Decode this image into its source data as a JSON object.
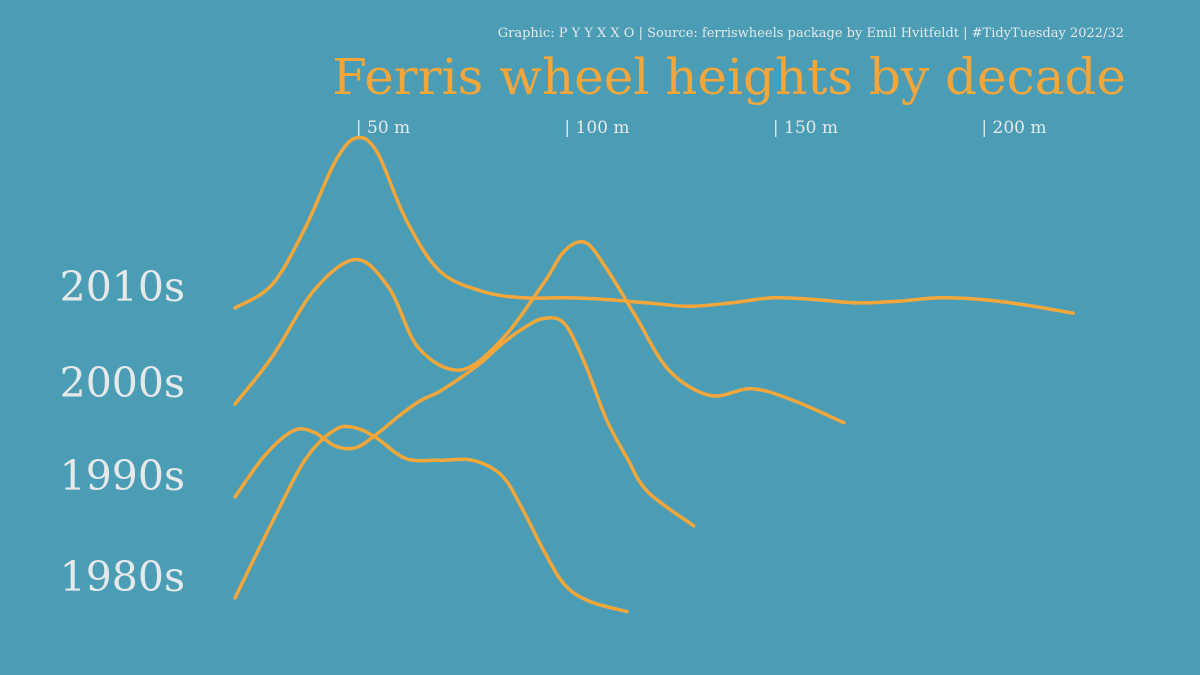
{
  "caption": "Graphic: P Y Y X X O | Source: ferriswheels package by Emil Hvitfeldt | #TidyTuesday 2022/32",
  "title": "Ferris wheel heights by decade",
  "colors": {
    "background": "#4a9db5",
    "accent": "#f4a63a",
    "text": "#e6e9ea"
  },
  "chart_data": {
    "type": "area",
    "title": "Ferris wheel heights by decade",
    "xlabel": "",
    "ylabel": "",
    "x_unit": "m",
    "xlim": [
      21,
      223
    ],
    "tick_values": [
      50,
      100,
      150,
      200
    ],
    "tick_labels": [
      "| 50 m",
      "| 100 m",
      "| 150 m",
      "| 200 m"
    ],
    "grid": false,
    "legend": "none",
    "series": [
      {
        "name": "2010s",
        "x": [
          21,
          30,
          38,
          45,
          50,
          55,
          62,
          70,
          80,
          90,
          100,
          110,
          120,
          130,
          140,
          150,
          160,
          170,
          180,
          190,
          200,
          210,
          222
        ],
        "density": [
          0.0,
          0.14,
          0.48,
          0.86,
          1.0,
          0.92,
          0.52,
          0.22,
          0.1,
          0.06,
          0.06,
          0.05,
          0.03,
          0.01,
          0.03,
          0.06,
          0.05,
          0.03,
          0.04,
          0.06,
          0.05,
          0.02,
          -0.03
        ]
      },
      {
        "name": "2000s",
        "x": [
          21,
          30,
          40,
          50,
          58,
          65,
          75,
          85,
          95,
          100,
          105,
          110,
          117,
          125,
          135,
          145,
          155,
          167
        ],
        "density": [
          0.0,
          0.28,
          0.67,
          0.85,
          0.68,
          0.33,
          0.2,
          0.38,
          0.71,
          0.9,
          0.95,
          0.8,
          0.52,
          0.2,
          0.05,
          0.09,
          0.02,
          -0.11
        ]
      },
      {
        "name": "1990s",
        "x": [
          21,
          28,
          35,
          40,
          45,
          50,
          55,
          60,
          65,
          70,
          75,
          80,
          85,
          90,
          95,
          100,
          105,
          110,
          115,
          120,
          131
        ],
        "density": [
          0.0,
          0.24,
          0.39,
          0.38,
          0.3,
          0.29,
          0.37,
          0.47,
          0.56,
          0.62,
          0.7,
          0.79,
          0.9,
          0.99,
          1.05,
          1.02,
          0.78,
          0.46,
          0.23,
          0.03,
          -0.17
        ]
      },
      {
        "name": "1980s",
        "x": [
          21,
          30,
          38,
          45,
          50,
          55,
          62,
          70,
          78,
          85,
          90,
          95,
          100,
          106,
          115
        ],
        "density": [
          0.0,
          0.45,
          0.82,
          0.99,
          1.0,
          0.94,
          0.82,
          0.81,
          0.81,
          0.72,
          0.52,
          0.28,
          0.08,
          -0.02,
          -0.08
        ]
      }
    ]
  }
}
